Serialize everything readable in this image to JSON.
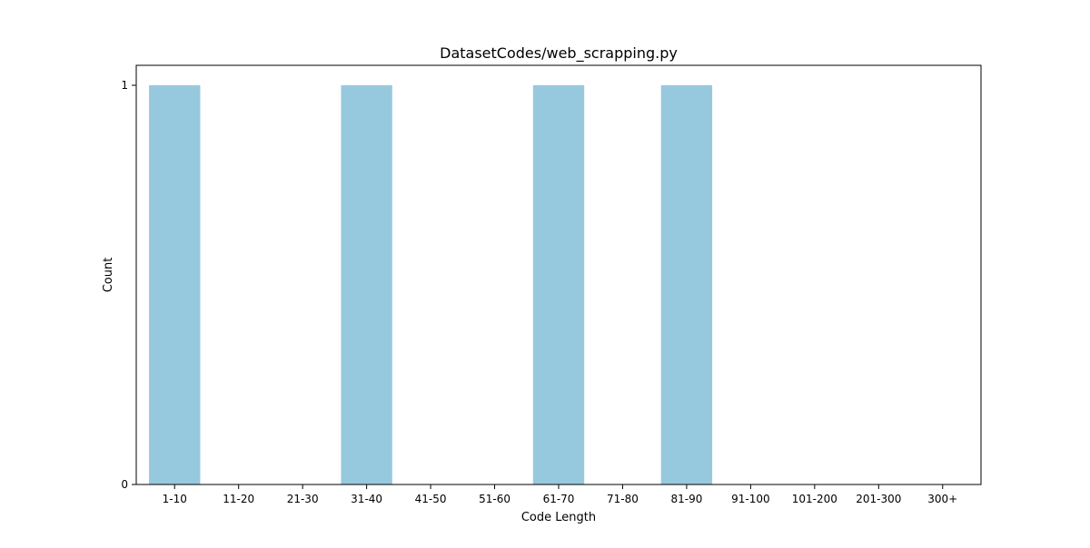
{
  "chart_data": {
    "type": "bar",
    "title": "DatasetCodes/web_scrapping.py",
    "xlabel": "Code Length",
    "ylabel": "Count",
    "categories": [
      "1-10",
      "11-20",
      "21-30",
      "31-40",
      "41-50",
      "51-60",
      "61-70",
      "71-80",
      "81-90",
      "91-100",
      "101-200",
      "201-300",
      "300+"
    ],
    "values": [
      1,
      0,
      0,
      1,
      0,
      0,
      1,
      0,
      1,
      0,
      0,
      0,
      0
    ],
    "yticks": [
      "0",
      "1"
    ],
    "ylim": [
      0,
      1.05
    ],
    "grid": false,
    "bar_color": "#96c9de"
  }
}
